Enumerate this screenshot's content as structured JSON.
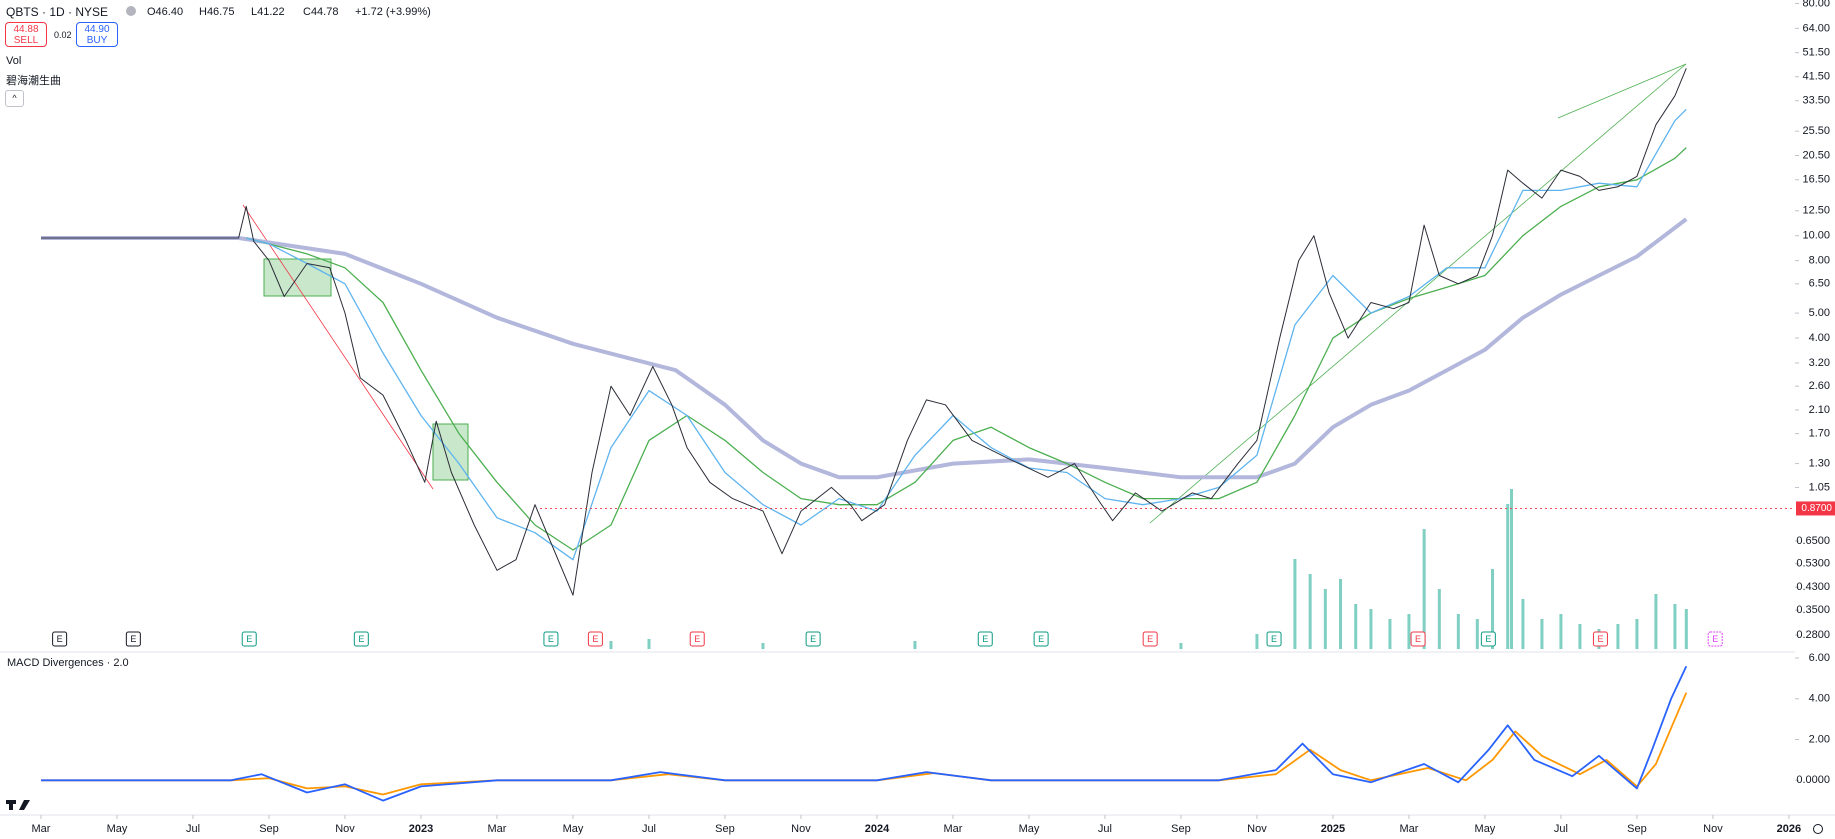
{
  "header": {
    "symbol": "QBTS · 1D · NYSE",
    "open": "O46.40",
    "high": "H46.75",
    "low": "L41.22",
    "close": "C44.78",
    "change": "+1.72 (+3.99%)",
    "sell_price": "44.88",
    "sell": "SELL",
    "spread": "0.02",
    "buy_price": "44.90",
    "buy": "BUY",
    "indicators": [
      "Vol",
      "碧海潮生曲"
    ]
  },
  "chart_data": [
    {
      "type": "line",
      "log_scale": true,
      "ylim": [
        0.245,
        82.5
      ],
      "yticks": [
        {
          "value": 80,
          "label": "80.00"
        },
        {
          "value": 64,
          "label": "64.00"
        },
        {
          "value": 51.5,
          "label": "51.50"
        },
        {
          "value": 41.5,
          "label": "41.50"
        },
        {
          "value": 33.5,
          "label": "33.50"
        },
        {
          "value": 25.5,
          "label": "25.50"
        },
        {
          "value": 20.5,
          "label": "20.50"
        },
        {
          "value": 16.5,
          "label": "16.50"
        },
        {
          "value": 12.5,
          "label": "12.50"
        },
        {
          "value": 10,
          "label": "10.00"
        },
        {
          "value": 8,
          "label": "8.00"
        },
        {
          "value": 6.5,
          "label": "6.50"
        },
        {
          "value": 5,
          "label": "5.00"
        },
        {
          "value": 4,
          "label": "4.00"
        },
        {
          "value": 3.2,
          "label": "3.20"
        },
        {
          "value": 2.6,
          "label": "2.60"
        },
        {
          "value": 2.1,
          "label": "2.10"
        },
        {
          "value": 1.7,
          "label": "1.70"
        },
        {
          "value": 1.3,
          "label": "1.30"
        },
        {
          "value": 1.05,
          "label": "1.05"
        },
        {
          "value": 0.65,
          "label": "0.6500"
        },
        {
          "value": 0.53,
          "label": "0.5300"
        },
        {
          "value": 0.43,
          "label": "0.4300"
        },
        {
          "value": 0.35,
          "label": "0.3500"
        },
        {
          "value": 0.28,
          "label": "0.2800"
        }
      ],
      "xlim": [
        -1.079,
        46.16
      ],
      "xticks": [
        {
          "value": 0,
          "label": "Mar"
        },
        {
          "value": 2,
          "label": "May"
        },
        {
          "value": 4,
          "label": "Jul"
        },
        {
          "value": 6,
          "label": "Sep"
        },
        {
          "value": 8,
          "label": "Nov"
        },
        {
          "value": 10,
          "label": "2023"
        },
        {
          "value": 12,
          "label": "Mar"
        },
        {
          "value": 14,
          "label": "May"
        },
        {
          "value": 16,
          "label": "Jul"
        },
        {
          "value": 18,
          "label": "Sep"
        },
        {
          "value": 20,
          "label": "Nov"
        },
        {
          "value": 22,
          "label": "2024"
        },
        {
          "value": 24,
          "label": "Mar"
        },
        {
          "value": 26,
          "label": "May"
        },
        {
          "value": 28,
          "label": "Jul"
        },
        {
          "value": 30,
          "label": "Sep"
        },
        {
          "value": 32,
          "label": "Nov"
        },
        {
          "value": 34,
          "label": "2025"
        },
        {
          "value": 36,
          "label": "Mar"
        },
        {
          "value": 38,
          "label": "May"
        },
        {
          "value": 40,
          "label": "Jul"
        },
        {
          "value": 42,
          "label": "Sep"
        },
        {
          "value": 44,
          "label": "Nov"
        },
        {
          "value": 46,
          "label": "2026"
        }
      ],
      "series": [
        {
          "color": "#b3b7dc",
          "width": 4,
          "x": [
            0,
            5.2,
            8,
            10,
            12,
            14,
            16.7,
            18,
            19,
            20,
            21,
            22,
            24,
            26,
            28,
            30,
            32,
            33,
            34,
            35,
            36,
            37,
            38,
            39,
            40,
            41,
            42,
            43.3
          ],
          "values": [
            9.8,
            9.8,
            8.5,
            6.5,
            4.8,
            3.8,
            3.0,
            2.2,
            1.6,
            1.3,
            1.15,
            1.15,
            1.3,
            1.35,
            1.25,
            1.15,
            1.15,
            1.3,
            1.8,
            2.2,
            2.5,
            3.0,
            3.6,
            4.8,
            5.9,
            7.0,
            8.3,
            11.6
          ]
        },
        {
          "color": "#4caf50",
          "width": 1.3,
          "x": [
            5.4,
            7,
            8,
            9,
            10,
            11,
            12,
            13,
            14,
            15,
            16,
            17,
            18,
            19,
            20,
            21,
            22,
            23,
            24,
            25,
            26,
            27,
            28,
            29,
            30,
            31,
            32,
            33,
            34,
            35,
            36,
            37,
            38,
            39,
            40,
            41,
            42,
            43,
            43.3
          ],
          "values": [
            9.8,
            8.5,
            7.5,
            5.5,
            3.0,
            1.7,
            1.1,
            0.75,
            0.6,
            0.75,
            1.6,
            2.0,
            1.6,
            1.2,
            0.95,
            0.9,
            0.9,
            1.1,
            1.6,
            1.8,
            1.5,
            1.3,
            1.1,
            0.95,
            0.95,
            0.95,
            1.1,
            2.0,
            4.0,
            5.0,
            5.7,
            6.3,
            7.0,
            10,
            13,
            15.5,
            16.5,
            20,
            22
          ]
        },
        {
          "color": "#5fb4ef",
          "width": 1.3,
          "x": [
            5.4,
            6,
            7,
            8,
            9,
            10,
            11,
            12,
            13,
            14,
            15,
            16,
            17,
            18,
            19,
            20,
            21,
            22,
            23,
            24,
            25,
            26,
            27,
            28,
            29,
            30,
            31,
            32,
            33,
            34,
            35,
            36,
            37,
            38,
            39,
            40,
            41,
            42,
            43,
            43.3
          ],
          "values": [
            9.8,
            9.3,
            7.8,
            6.5,
            3.5,
            2.0,
            1.3,
            0.8,
            0.7,
            0.55,
            1.5,
            2.5,
            2.0,
            1.2,
            0.9,
            0.75,
            0.95,
            0.85,
            1.4,
            2.0,
            1.5,
            1.25,
            1.2,
            0.95,
            0.9,
            0.95,
            1.05,
            1.4,
            4.5,
            7,
            5.0,
            5.8,
            7.5,
            7.5,
            15,
            15,
            16,
            15.5,
            28,
            31
          ]
        },
        {
          "color": "#2b2e38",
          "width": 1,
          "x": [
            0,
            2,
            4,
            5.2,
            5.4,
            5.6,
            6,
            6.4,
            7,
            7.6,
            8,
            8.4,
            9,
            9.6,
            10.1,
            10.4,
            10.8,
            11.4,
            12,
            12.5,
            13,
            13.5,
            14,
            14.5,
            15,
            15.5,
            16.1,
            16.6,
            17,
            17.6,
            18.2,
            19,
            19.5,
            20,
            20.8,
            21.3,
            21.6,
            22.2,
            22.8,
            23.3,
            23.8,
            24.5,
            25.5,
            26.5,
            27.2,
            27.8,
            28.2,
            28.8,
            29.5,
            30.3,
            30.8,
            31.5,
            32,
            32.6,
            33.1,
            33.5,
            33.9,
            34.4,
            35,
            35.6,
            36,
            36.4,
            36.8,
            37.3,
            37.8,
            38.2,
            38.6,
            39,
            39.5,
            40,
            40.5,
            41,
            41.5,
            42,
            42.5,
            43,
            43.3
          ],
          "values": [
            9.8,
            9.8,
            9.8,
            9.8,
            13,
            9.5,
            8,
            5.8,
            7.8,
            7.5,
            5,
            2.8,
            2.4,
            1.6,
            1.1,
            1.9,
            1.2,
            0.75,
            0.5,
            0.55,
            0.9,
            0.6,
            0.4,
            1.2,
            2.6,
            2.0,
            3.1,
            2.2,
            1.5,
            1.1,
            0.95,
            0.85,
            0.58,
            0.85,
            1.05,
            0.9,
            0.78,
            0.9,
            1.6,
            2.3,
            2.2,
            1.6,
            1.35,
            1.15,
            1.3,
            0.95,
            0.78,
            1.0,
            0.85,
            1.0,
            0.95,
            1.3,
            1.6,
            4,
            8,
            10,
            6,
            4,
            5.5,
            5.2,
            5.5,
            11,
            7,
            6.5,
            7,
            10,
            18,
            16,
            14,
            18,
            17,
            15,
            15.5,
            17,
            27,
            35,
            44.78
          ]
        }
      ],
      "price_line": {
        "value": 0.87,
        "label": "0.8700"
      },
      "volume": {
        "color": "#7fcfc3",
        "x": [
          15,
          16,
          19,
          23,
          30,
          32,
          33,
          33.4,
          33.8,
          34.2,
          34.6,
          35,
          35.5,
          36,
          36.4,
          36.8,
          37.3,
          37.8,
          38.2,
          38.6,
          38.7,
          39,
          39.5,
          40,
          40.5,
          41,
          41.5,
          42,
          42.5,
          43,
          43.3
        ],
        "values": [
          8,
          10,
          6,
          8,
          6,
          15,
          90,
          75,
          60,
          70,
          45,
          40,
          30,
          35,
          120,
          60,
          35,
          30,
          80,
          145,
          160,
          50,
          30,
          35,
          25,
          20,
          25,
          30,
          55,
          45,
          40
        ]
      },
      "earnings": [
        {
          "x": 0.49,
          "label": "E",
          "color": "#131722"
        },
        {
          "x": 2.43,
          "label": "E",
          "color": "#131722"
        },
        {
          "x": 5.48,
          "label": "E",
          "color": "#089981"
        },
        {
          "x": 8.43,
          "label": "E",
          "color": "#089981"
        },
        {
          "x": 13.42,
          "label": "E",
          "color": "#089981"
        },
        {
          "x": 14.59,
          "label": "E",
          "color": "#f23645"
        },
        {
          "x": 17.27,
          "label": "E",
          "color": "#f23645"
        },
        {
          "x": 20.32,
          "label": "E",
          "color": "#089981"
        },
        {
          "x": 24.85,
          "label": "E",
          "color": "#089981"
        },
        {
          "x": 26.32,
          "label": "E",
          "color": "#089981"
        },
        {
          "x": 29.19,
          "label": "E",
          "color": "#f23645"
        },
        {
          "x": 32.45,
          "label": "E",
          "color": "#089981"
        },
        {
          "x": 36.24,
          "label": "E",
          "color": "#f23645"
        },
        {
          "x": 38.09,
          "label": "E",
          "color": "#089981"
        },
        {
          "x": 41.04,
          "label": "E",
          "color": "#f23645"
        },
        {
          "x": 44.06,
          "label": "E",
          "color": "#e040fb"
        }
      ]
    },
    {
      "type": "line",
      "title": "MACD Divergences · 2.0",
      "ylim": [
        -1.46,
        6.15
      ],
      "yticks": [
        {
          "value": 6,
          "label": "6.00"
        },
        {
          "value": 4,
          "label": "4.00"
        },
        {
          "value": 2,
          "label": "2.00"
        },
        {
          "value": 0,
          "label": "0.0000"
        }
      ],
      "series": [
        {
          "color": "#ff9800",
          "width": 1.8,
          "x": [
            0,
            5,
            6,
            7,
            8,
            9,
            10,
            12,
            15,
            16.5,
            18,
            22,
            23.5,
            25,
            31,
            32.5,
            33.4,
            34.2,
            35,
            36.5,
            37.5,
            38.2,
            38.8,
            39.5,
            40.5,
            41.2,
            42,
            42.5,
            43,
            43.3
          ],
          "values": [
            0,
            0,
            0.1,
            -0.4,
            -0.3,
            -0.7,
            -0.2,
            0,
            0,
            0.3,
            0,
            0,
            0.35,
            0,
            0,
            0.3,
            1.5,
            0.5,
            0,
            0.6,
            0,
            1.0,
            2.4,
            1.2,
            0.3,
            1.0,
            -0.3,
            0.8,
            3.0,
            4.3
          ]
        },
        {
          "color": "#2962ff",
          "width": 1.8,
          "x": [
            0,
            5,
            5.8,
            7,
            8,
            9,
            10,
            12,
            15,
            16.3,
            18,
            22,
            23.3,
            25,
            31,
            32.5,
            33.2,
            34,
            35,
            36.4,
            37.3,
            38.1,
            38.6,
            39.3,
            40.3,
            41,
            42,
            42.4,
            42.9,
            43.3
          ],
          "values": [
            0,
            0,
            0.3,
            -0.6,
            -0.2,
            -1.0,
            -0.3,
            0,
            0,
            0.4,
            0,
            0,
            0.4,
            0,
            0,
            0.5,
            1.8,
            0.3,
            -0.1,
            0.8,
            -0.1,
            1.5,
            2.7,
            1.0,
            0.2,
            1.2,
            -0.4,
            1.5,
            4.0,
            5.6
          ]
        }
      ]
    }
  ]
}
